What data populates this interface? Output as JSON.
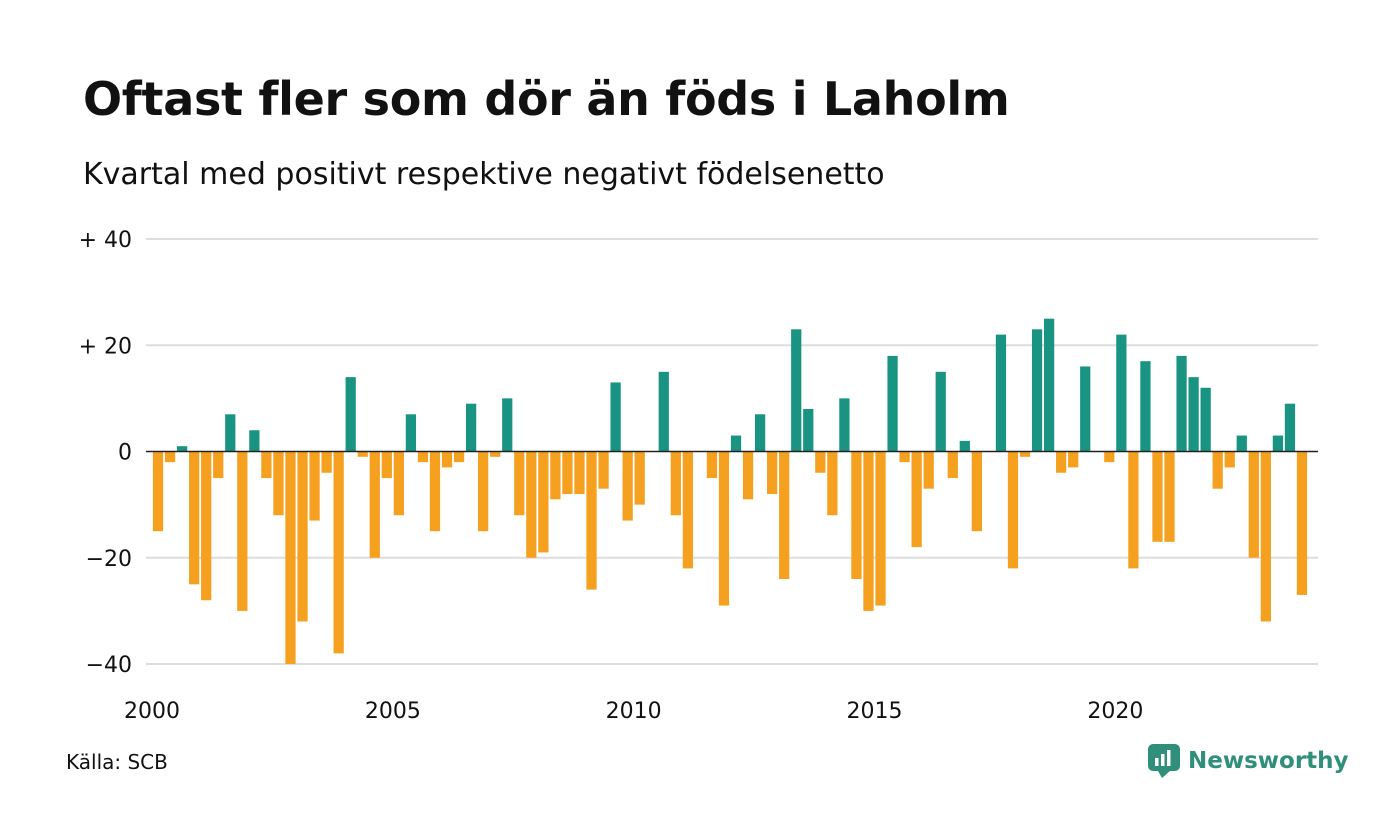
{
  "title": "Oftast fler som dör än föds i Laholm",
  "subtitle": "Kvartal med positivt respektive negativt födelsenetto",
  "source": "Källa: SCB",
  "brand": "Newsworthy",
  "colors": {
    "positive": "#1a9482",
    "negative": "#f5a01f",
    "grid": "#dddddd",
    "zero_line": "#222222",
    "brand": "#2f8f7a"
  },
  "chart_data": {
    "type": "bar",
    "title": "Oftast fler som dör än föds i Laholm",
    "subtitle": "Kvartal med positivt respektive negativt födelsenetto",
    "ylim": [
      -40,
      40
    ],
    "y_ticks": [
      {
        "value": 40,
        "label": "+ 40"
      },
      {
        "value": 20,
        "label": "+ 20"
      },
      {
        "value": 0,
        "label": "0"
      },
      {
        "value": -20,
        "label": "−20"
      },
      {
        "value": -40,
        "label": "−40"
      }
    ],
    "x_ticks": [
      "2000",
      "2005",
      "2010",
      "2015",
      "2020"
    ],
    "grid": true,
    "first_year": 2000,
    "last_year": 2024,
    "categories": [
      "2000 K1",
      "2000 K2",
      "2000 K3",
      "2000 K4",
      "2001 K1",
      "2001 K2",
      "2001 K3",
      "2001 K4",
      "2002 K1",
      "2002 K2",
      "2002 K3",
      "2002 K4",
      "2003 K1",
      "2003 K2",
      "2003 K3",
      "2003 K4",
      "2004 K1",
      "2004 K2",
      "2004 K3",
      "2004 K4",
      "2005 K1",
      "2005 K2",
      "2005 K3",
      "2005 K4",
      "2006 K1",
      "2006 K2",
      "2006 K3",
      "2006 K4",
      "2007 K1",
      "2007 K2",
      "2007 K3",
      "2007 K4",
      "2008 K1",
      "2008 K2",
      "2008 K3",
      "2008 K4",
      "2009 K1",
      "2009 K2",
      "2009 K3",
      "2009 K4",
      "2010 K1",
      "2010 K2",
      "2010 K3",
      "2010 K4",
      "2011 K1",
      "2011 K2",
      "2011 K3",
      "2011 K4",
      "2012 K1",
      "2012 K2",
      "2012 K3",
      "2012 K4",
      "2013 K1",
      "2013 K2",
      "2013 K3",
      "2013 K4",
      "2014 K1",
      "2014 K2",
      "2014 K3",
      "2014 K4",
      "2015 K1",
      "2015 K2",
      "2015 K3",
      "2015 K4",
      "2016 K1",
      "2016 K2",
      "2016 K3",
      "2016 K4",
      "2017 K1",
      "2017 K2",
      "2017 K3",
      "2017 K4",
      "2018 K1",
      "2018 K2",
      "2018 K3",
      "2018 K4",
      "2019 K1",
      "2019 K2",
      "2019 K3",
      "2019 K4",
      "2020 K1",
      "2020 K2",
      "2020 K3",
      "2020 K4",
      "2021 K1",
      "2021 K2",
      "2021 K3",
      "2021 K4",
      "2022 K1",
      "2022 K2",
      "2022 K3",
      "2022 K4",
      "2023 K1",
      "2023 K2",
      "2023 K3",
      "2023 K4"
    ],
    "values": [
      -15,
      -2,
      1,
      -25,
      -28,
      -5,
      7,
      -30,
      4,
      -5,
      -12,
      -40,
      -32,
      -13,
      -4,
      -38,
      14,
      -1,
      -20,
      -5,
      -12,
      7,
      -2,
      -15,
      -3,
      -2,
      9,
      -15,
      -1,
      10,
      -12,
      -20,
      -19,
      -9,
      -8,
      -8,
      -26,
      -7,
      13,
      -13,
      -10,
      0,
      15,
      -12,
      -22,
      0,
      -5,
      -29,
      3,
      -9,
      7,
      -8,
      -24,
      23,
      8,
      -4,
      -12,
      10,
      -24,
      -30,
      -29,
      18,
      -2,
      -18,
      -7,
      15,
      -5,
      2,
      -15,
      0,
      22,
      -22,
      -1,
      23,
      25,
      -4,
      -3,
      16,
      0,
      -2,
      22,
      -22,
      17,
      -17,
      -17,
      18,
      14,
      12,
      -7,
      -3,
      3,
      -20,
      -32,
      3,
      9,
      -27
    ]
  }
}
